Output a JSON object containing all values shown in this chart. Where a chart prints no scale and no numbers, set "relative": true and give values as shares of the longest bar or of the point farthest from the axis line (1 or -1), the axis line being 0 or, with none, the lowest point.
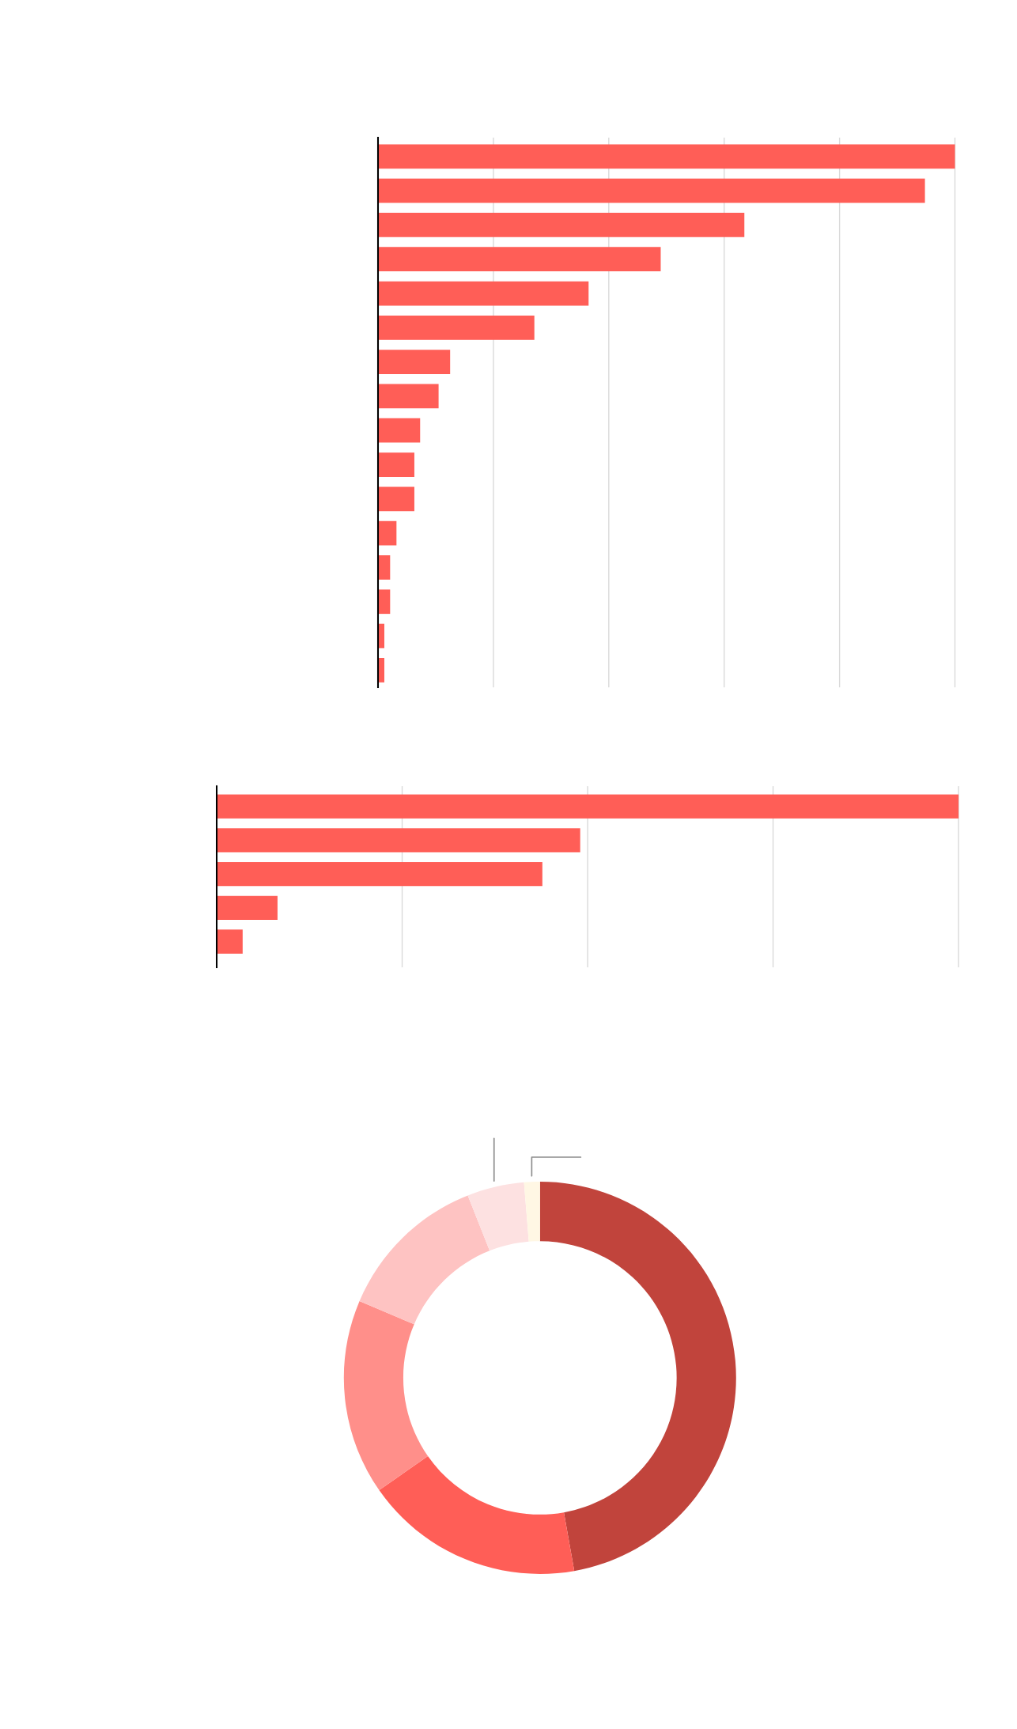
{
  "chart_data": [
    {
      "type": "bar",
      "orientation": "horizontal",
      "relative": true,
      "categories": [
        null,
        null,
        null,
        null,
        null,
        null,
        null,
        null,
        null,
        null,
        null,
        null,
        null,
        null,
        null,
        null
      ],
      "values": [
        1,
        0.948,
        0.635,
        0.49,
        0.365,
        0.271,
        0.125,
        0.105,
        0.073,
        0.063,
        0.063,
        0.032,
        0.021,
        0.021,
        0.011,
        0.011
      ],
      "color": "#ff5e57",
      "grid": "x"
    },
    {
      "type": "bar",
      "orientation": "horizontal",
      "relative": true,
      "categories": [
        null,
        null,
        null,
        null,
        null
      ],
      "values": [
        1,
        0.49,
        0.439,
        0.082,
        0.035
      ],
      "color": "#ff5e57",
      "grid": "x"
    },
    {
      "type": "donut",
      "categories": [
        null,
        null,
        null,
        null,
        null,
        null
      ],
      "values": [
        47.2,
        18.1,
        16.1,
        12.6,
        4.7,
        1.3
      ],
      "colors": [
        "#c1443c",
        "#ff5e57",
        "#ff8f8a",
        "#fec3c2",
        "#fde1e1",
        "#fff7e4"
      ]
    }
  ]
}
